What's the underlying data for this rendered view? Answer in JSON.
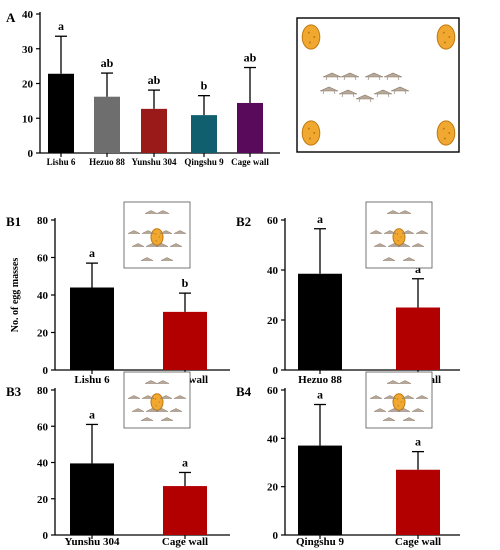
{
  "chart_data": [
    {
      "type": "bar",
      "panel": "A",
      "categories": [
        "Lishu 6",
        "Hezuo 88",
        "Yunshu 304",
        "Qingshu 9",
        "Cage wall"
      ],
      "values": [
        22.8,
        16.2,
        12.7,
        10.9,
        14.4
      ],
      "errors": [
        10.8,
        6.8,
        5.4,
        5.6,
        10.2
      ],
      "letters": [
        "a",
        "ab",
        "ab",
        "b",
        "ab"
      ],
      "colors": [
        "#000000",
        "#6e6e6e",
        "#9a1a1a",
        "#0f5f6e",
        "#5a0a5a"
      ],
      "ylim": [
        0,
        40
      ],
      "yticks": [
        0,
        10,
        20,
        30,
        40
      ],
      "ylabel": "",
      "inset": "four potatoes in cage corners with moths in center"
    },
    {
      "type": "bar",
      "panel": "B1",
      "categories": [
        "Lishu 6",
        "Cage wall"
      ],
      "values": [
        44,
        31
      ],
      "errors": [
        13,
        10
      ],
      "letters": [
        "a",
        "b"
      ],
      "colors": [
        "#000000",
        "#b20000"
      ],
      "ylim": [
        0,
        80
      ],
      "yticks": [
        0,
        20,
        40,
        60,
        80
      ],
      "ylabel": "No. of egg masses"
    },
    {
      "type": "bar",
      "panel": "B2",
      "categories": [
        "Hezuo 88",
        "Cage wall"
      ],
      "values": [
        38.5,
        25
      ],
      "errors": [
        18,
        11.5
      ],
      "letters": [
        "a",
        "a"
      ],
      "colors": [
        "#000000",
        "#b20000"
      ],
      "ylim": [
        0,
        60
      ],
      "yticks": [
        0,
        20,
        40,
        60
      ],
      "ylabel": ""
    },
    {
      "type": "bar",
      "panel": "B3",
      "categories": [
        "Yunshu 304",
        "Cage wall"
      ],
      "values": [
        39.5,
        27
      ],
      "errors": [
        21.5,
        7.5
      ],
      "letters": [
        "a",
        "a"
      ],
      "colors": [
        "#000000",
        "#b20000"
      ],
      "ylim": [
        0,
        80
      ],
      "yticks": [
        0,
        20,
        40,
        60,
        80
      ],
      "ylabel": ""
    },
    {
      "type": "bar",
      "panel": "B4",
      "categories": [
        "Qingshu 9",
        "Cage wall"
      ],
      "values": [
        37,
        27
      ],
      "errors": [
        17,
        7.5
      ],
      "letters": [
        "a",
        "a"
      ],
      "colors": [
        "#000000",
        "#b20000"
      ],
      "ylim": [
        0,
        60
      ],
      "yticks": [
        0,
        20,
        40,
        60
      ],
      "ylabel": ""
    }
  ],
  "colors": {
    "potato": "#f0a830",
    "potato_outline": "#c07a10",
    "moth": "#b8a898"
  }
}
